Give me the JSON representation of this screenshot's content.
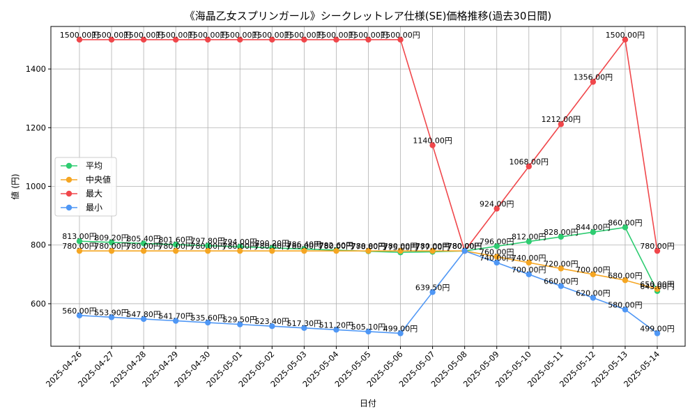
{
  "chart_data": {
    "type": "line",
    "title": "《海晶乙女スプリンガール》シークレットレア仕様(SE)価格推移(過去30日間)",
    "xlabel": "日付",
    "ylabel": "値 (円)",
    "categories": [
      "2025-04-26",
      "2025-04-27",
      "2025-04-28",
      "2025-04-29",
      "2025-04-30",
      "2025-05-01",
      "2025-05-02",
      "2025-05-03",
      "2025-05-04",
      "2025-05-05",
      "2025-05-06",
      "2025-05-07",
      "2025-05-08",
      "2025-05-09",
      "2025-05-10",
      "2025-05-11",
      "2025-05-12",
      "2025-05-13",
      "2025-05-14"
    ],
    "ylim": [
      455,
      1545
    ],
    "yticks": [
      600,
      800,
      1000,
      1200,
      1400
    ],
    "grid": true,
    "legend_position": "center-left",
    "value_suffix": "円",
    "series": [
      {
        "name": "平均",
        "color": "#2ecc71",
        "values": [
          813.0,
          809.2,
          805.4,
          801.6,
          797.8,
          794.0,
          790.2,
          786.4,
          782.6,
          778.8,
          775.0,
          777.0,
          780.0,
          796.0,
          812.0,
          828.0,
          844.0,
          860.0,
          643.0
        ],
        "labels": [
          "813.00円",
          "809.20円",
          "805.40円",
          "801.60円",
          "797.80円",
          "794.00円",
          "790.20円",
          "786.40円",
          "782.60円",
          "778.80円",
          "775.00円",
          "777.00円",
          "780.00円",
          "796.00円",
          "812.00円",
          "828.00円",
          "844.00円",
          "860.00円",
          "643.00円"
        ]
      },
      {
        "name": "中央値",
        "color": "#f5a623",
        "values": [
          780,
          780,
          780,
          780,
          780,
          780,
          780,
          780,
          780,
          780,
          780,
          780,
          780,
          760,
          740,
          720,
          700,
          680,
          650
        ],
        "labels": [
          "780.00円",
          "780.00円",
          "780.00円",
          "780.00円",
          "780.00円",
          "780.00円",
          "780.00円",
          "780.00円",
          "780.00円",
          "780.00円",
          "780.00円",
          "780.00円",
          "780.00円",
          "760.00円",
          "740.00円",
          "720.00円",
          "700.00円",
          "680.00円",
          "650.00円"
        ]
      },
      {
        "name": "最大",
        "color": "#f0474b",
        "values": [
          1500,
          1500,
          1500,
          1500,
          1500,
          1500,
          1500,
          1500,
          1500,
          1500,
          1500,
          1140,
          780,
          924,
          1068,
          1212,
          1356,
          1500,
          780
        ],
        "labels": [
          "1500.00円",
          "1500.00円",
          "1500.00円",
          "1500.00円",
          "1500.00円",
          "1500.00円",
          "1500.00円",
          "1500.00円",
          "1500.00円",
          "1500.00円",
          "1500.00円",
          "1140.00円",
          "780.00円",
          "924.00円",
          "1068.00円",
          "1212.00円",
          "1356.00円",
          "1500.00円",
          "780.00円"
        ]
      },
      {
        "name": "最小",
        "color": "#4f97f5",
        "values": [
          560.0,
          553.9,
          547.8,
          541.7,
          535.6,
          529.5,
          523.4,
          517.3,
          511.2,
          505.1,
          499.0,
          639.5,
          780.0,
          740.0,
          700.0,
          660.0,
          620.0,
          580.0,
          499.0
        ],
        "labels": [
          "560.00円",
          "553.90円",
          "547.80円",
          "541.70円",
          "535.60円",
          "529.50円",
          "523.40円",
          "517.30円",
          "511.20円",
          "505.10円",
          "499.00円",
          "639.50円",
          "780.00円",
          "740.00円",
          "700.00円",
          "660.00円",
          "620.00円",
          "580.00円",
          "499.00円"
        ]
      }
    ]
  }
}
